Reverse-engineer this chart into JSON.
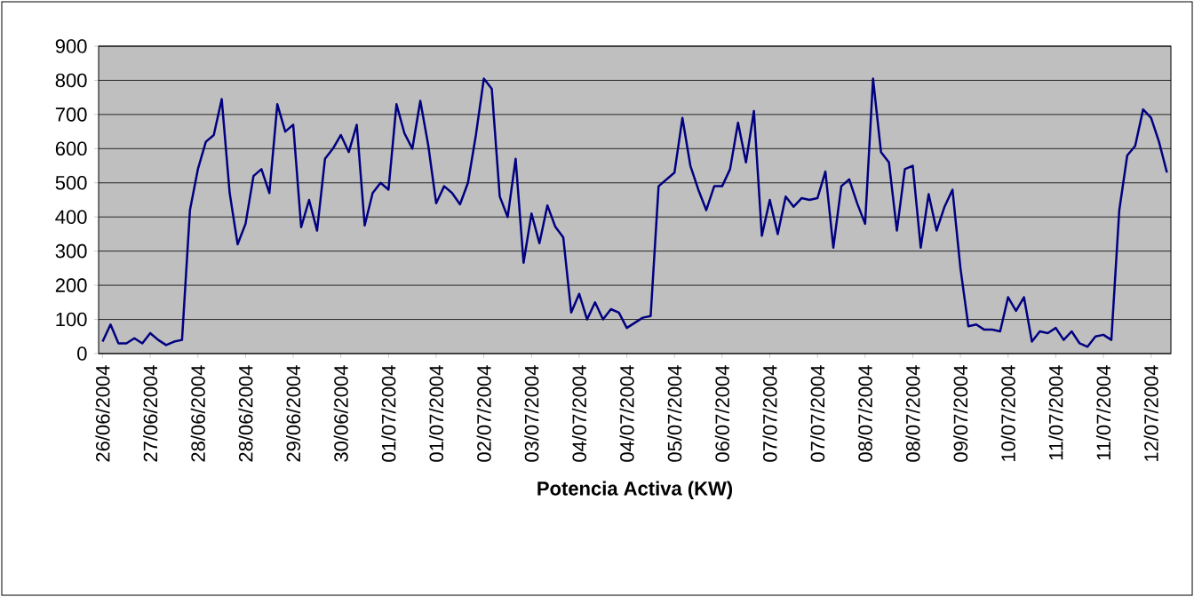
{
  "chart_data": {
    "type": "line",
    "xlabel": "Potencia Activa (KW)",
    "categories": [
      "26/06/2004",
      null,
      null,
      null,
      null,
      null,
      "27/06/2004",
      null,
      null,
      null,
      null,
      null,
      "28/06/2004",
      null,
      null,
      null,
      null,
      null,
      "28/06/2004",
      null,
      null,
      null,
      null,
      null,
      "29/06/2004",
      null,
      null,
      null,
      null,
      null,
      "30/06/2004",
      null,
      null,
      null,
      null,
      null,
      "01/07/2004",
      null,
      null,
      null,
      null,
      null,
      "01/07/2004",
      null,
      null,
      null,
      null,
      null,
      "02/07/2004",
      null,
      null,
      null,
      null,
      null,
      "03/07/2004",
      null,
      null,
      null,
      null,
      null,
      "04/07/2004",
      null,
      null,
      null,
      null,
      null,
      "04/07/2004",
      null,
      null,
      null,
      null,
      null,
      "05/07/2004",
      null,
      null,
      null,
      null,
      null,
      "06/07/2004",
      null,
      null,
      null,
      null,
      null,
      "07/07/2004",
      null,
      null,
      null,
      null,
      null,
      "07/07/2004",
      null,
      null,
      null,
      null,
      null,
      "08/07/2004",
      null,
      null,
      null,
      null,
      null,
      "08/07/2004",
      null,
      null,
      null,
      null,
      null,
      "09/07/2004",
      null,
      null,
      null,
      null,
      null,
      "10/07/2004",
      null,
      null,
      null,
      null,
      null,
      "11/07/2004",
      null,
      null,
      null,
      null,
      null,
      "11/07/2004",
      null,
      null,
      null,
      null,
      null,
      "12/07/2004",
      null,
      null
    ],
    "values": [
      35,
      85,
      30,
      30,
      45,
      30,
      60,
      40,
      25,
      35,
      40,
      420,
      540,
      620,
      640,
      745,
      470,
      320,
      380,
      520,
      540,
      470,
      730,
      650,
      670,
      370,
      450,
      360,
      570,
      600,
      640,
      590,
      670,
      375,
      470,
      500,
      480,
      730,
      645,
      600,
      740,
      610,
      440,
      490,
      470,
      437,
      500,
      640,
      805,
      775,
      460,
      400,
      570,
      266,
      410,
      323,
      434,
      371,
      340,
      120,
      175,
      100,
      150,
      100,
      130,
      120,
      75,
      90,
      105,
      110,
      490,
      510,
      530,
      690,
      550,
      480,
      420,
      490,
      490,
      540,
      676,
      560,
      710,
      345,
      450,
      350,
      460,
      430,
      455,
      450,
      455,
      533,
      310,
      490,
      510,
      440,
      380,
      805,
      590,
      560,
      360,
      540,
      550,
      310,
      467,
      360,
      430,
      480,
      250,
      80,
      85,
      70,
      70,
      65,
      165,
      125,
      165,
      35,
      65,
      60,
      75,
      40,
      65,
      30,
      20,
      50,
      55,
      40,
      420,
      580,
      608,
      715,
      690,
      620,
      530
    ],
    "color": "#000080",
    "ylim": [
      0,
      900
    ],
    "yticks": [
      0,
      100,
      200,
      300,
      400,
      500,
      600,
      700,
      800,
      900
    ],
    "grid": "y"
  }
}
